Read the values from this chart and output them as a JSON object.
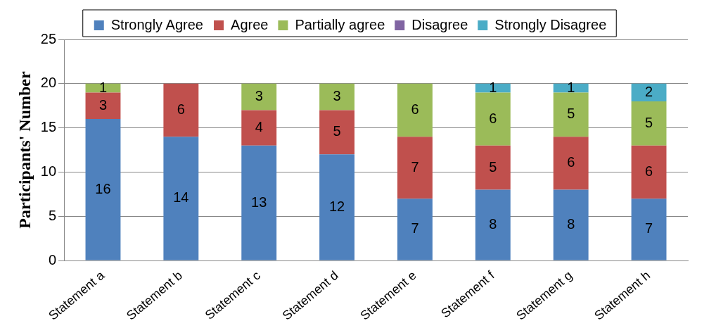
{
  "chart_data": {
    "type": "bar",
    "stacked": true,
    "ylabel": "Participants' Number",
    "categories": [
      "Statement a",
      "Statement b",
      "Statement c",
      "Statement d",
      "Statement e",
      "Statement f",
      "Statement g",
      "Statement h"
    ],
    "series": [
      {
        "name": "Strongly Agree",
        "color": "#4f81bd",
        "values": [
          16,
          14,
          13,
          12,
          7,
          8,
          8,
          7
        ]
      },
      {
        "name": "Agree",
        "color": "#c0504d",
        "values": [
          3,
          6,
          4,
          5,
          7,
          5,
          6,
          6
        ]
      },
      {
        "name": "Partially agree",
        "color": "#9bbb59",
        "values": [
          1,
          null,
          3,
          3,
          6,
          6,
          5,
          5
        ]
      },
      {
        "name": "Disagree",
        "color": "#8064a2",
        "values": [
          null,
          null,
          null,
          null,
          null,
          null,
          null,
          null
        ]
      },
      {
        "name": "Strongly Disagree",
        "color": "#4bacc6",
        "values": [
          null,
          null,
          null,
          null,
          null,
          1,
          1,
          2
        ]
      }
    ],
    "ylim": [
      0,
      25
    ],
    "yticks": [
      0,
      5,
      10,
      15,
      20,
      25
    ],
    "grid": "y",
    "legend": "top",
    "data_labels": true
  }
}
